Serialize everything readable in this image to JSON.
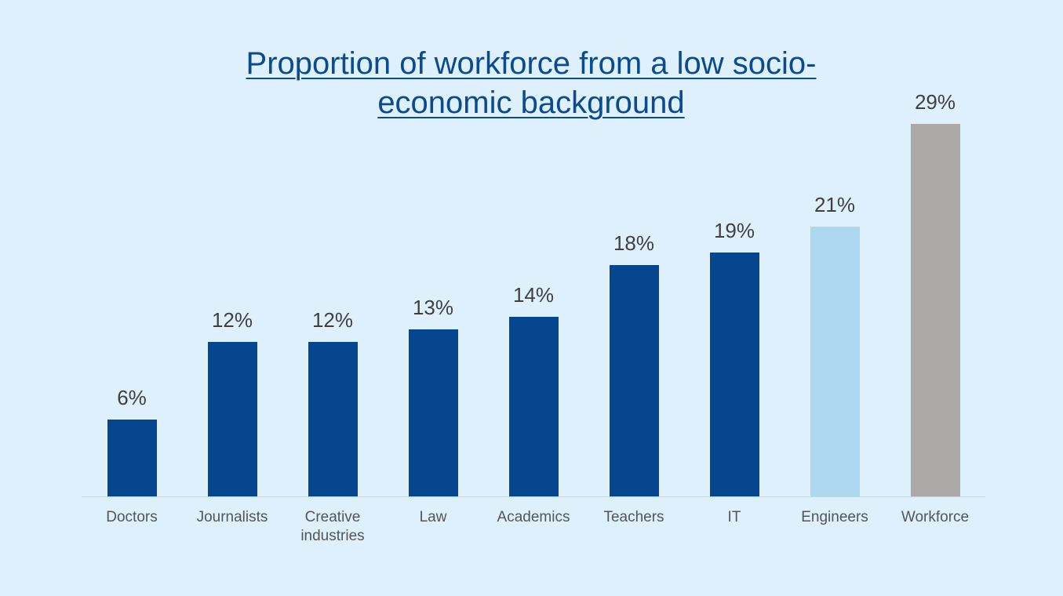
{
  "chart_data": {
    "type": "bar",
    "title": "Proportion of workforce from a low socio-economic background",
    "categories": [
      "Doctors",
      "Journalists",
      "Creative industries",
      "Law",
      "Academics",
      "Teachers",
      "IT",
      "Engineers",
      "Workforce"
    ],
    "values": [
      6,
      12,
      12,
      13,
      14,
      18,
      19,
      21,
      29
    ],
    "value_labels": [
      "6%",
      "12%",
      "12%",
      "13%",
      "14%",
      "18%",
      "19%",
      "21%",
      "29%"
    ],
    "colors": [
      "#05468f",
      "#05468f",
      "#05468f",
      "#05468f",
      "#05468f",
      "#05468f",
      "#05468f",
      "#add8ef",
      "#aca9a9"
    ]
  }
}
